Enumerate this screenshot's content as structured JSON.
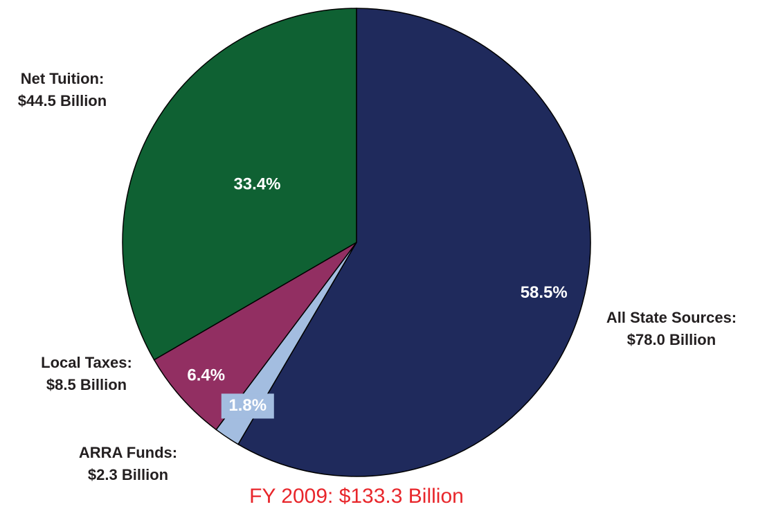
{
  "chart_data": {
    "type": "pie",
    "title": "FY 2009: $133.3 Billion",
    "categories": [
      "All State Sources:",
      "ARRA Funds:",
      "Local Taxes:",
      "Net Tuition:"
    ],
    "amount_labels": [
      "$78.0 Billion",
      "$2.3 Billion",
      "$8.5 Billion",
      "$44.5 Billion"
    ],
    "values": [
      58.5,
      1.8,
      6.4,
      33.4
    ],
    "value_labels": [
      "58.5%",
      "1.8%",
      "6.4%",
      "33.4%"
    ],
    "colors": [
      "#1f2a5c",
      "#a3bde0",
      "#922f62",
      "#0f6133"
    ],
    "title_color": "#e8262b"
  }
}
